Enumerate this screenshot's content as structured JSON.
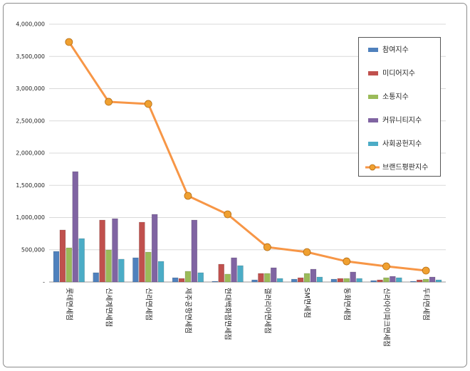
{
  "chart_data": {
    "type": "bar",
    "categories": [
      "롯데면세점",
      "신세계면세점",
      "신라면세점",
      "제주공항면세점",
      "현대백화점면세점",
      "갤러리아면세점",
      "SM면세점",
      "동화면세점",
      "신라아이파크면세점",
      "두타면세점"
    ],
    "series": [
      {
        "name": "참여지수",
        "color": "#4f81bd",
        "values": [
          475000,
          144000,
          376000,
          66000,
          11000,
          33000,
          44000,
          44000,
          22000,
          11000
        ]
      },
      {
        "name": "미디어지수",
        "color": "#c0504d",
        "values": [
          807000,
          961000,
          928000,
          55000,
          276000,
          133000,
          66000,
          55000,
          33000,
          33000
        ]
      },
      {
        "name": "소통지수",
        "color": "#9bbb59",
        "values": [
          530000,
          497000,
          464000,
          166000,
          122000,
          133000,
          133000,
          55000,
          66000,
          44000
        ]
      },
      {
        "name": "커뮤니티지수",
        "color": "#8064a2",
        "values": [
          1713000,
          983000,
          1050000,
          961000,
          376000,
          221000,
          199000,
          155000,
          88000,
          77000
        ]
      },
      {
        "name": "사회공헌지수",
        "color": "#4bacc6",
        "values": [
          674000,
          354000,
          320000,
          144000,
          254000,
          55000,
          77000,
          55000,
          66000,
          33000
        ]
      },
      {
        "name": "브랜드평판지수",
        "color": "#f79646",
        "type": "line",
        "values": [
          3724000,
          2796000,
          2763000,
          1337000,
          1050000,
          541000,
          464000,
          320000,
          243000,
          177000
        ]
      }
    ],
    "ylim": [
      0,
      4000000
    ],
    "yticks": [
      {
        "value": 0,
        "label": "-"
      },
      {
        "value": 500000,
        "label": "500,000"
      },
      {
        "value": 1000000,
        "label": "1,000,000"
      },
      {
        "value": 1500000,
        "label": "1,500,000"
      },
      {
        "value": 2000000,
        "label": "2,000,000"
      },
      {
        "value": 2500000,
        "label": "2,500,000"
      },
      {
        "value": 3000000,
        "label": "3,000,000"
      },
      {
        "value": 3500000,
        "label": "3,500,000"
      },
      {
        "value": 4000000,
        "label": "4,000,000"
      }
    ],
    "grid": true,
    "legend": "right"
  }
}
